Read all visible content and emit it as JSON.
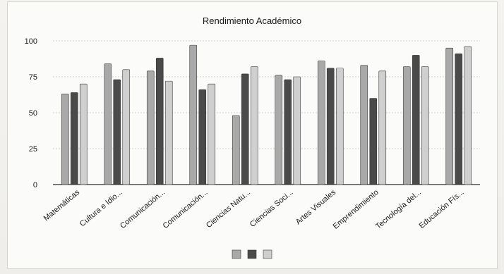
{
  "chart_data": {
    "type": "bar",
    "title": "Rendimiento Académico",
    "xlabel": "",
    "ylabel": "",
    "ylim": [
      0,
      100
    ],
    "yticks": [
      0,
      25,
      50,
      75,
      100
    ],
    "categories": [
      "Matemáticas",
      "Cultura e Idio...",
      "Comunicación...",
      "Comunicación...",
      "Ciencias Natu...",
      "Ciencias Soci...",
      "Artes Visuales",
      "Emprendimiento",
      "Tecnología del...",
      "Educación Fís..."
    ],
    "series": [
      {
        "values": [
          63,
          84,
          79,
          97,
          48,
          76,
          86,
          83,
          82,
          95
        ],
        "color": "#a9a9a9"
      },
      {
        "values": [
          64,
          73,
          88,
          66,
          77,
          73,
          81,
          60,
          90,
          91
        ],
        "color": "#4a4a4a"
      },
      {
        "values": [
          70,
          80,
          72,
          70,
          82,
          75,
          81,
          79,
          82,
          96
        ],
        "color": "#cfcfcf"
      }
    ],
    "legend_position": "bottom",
    "grid": true
  }
}
